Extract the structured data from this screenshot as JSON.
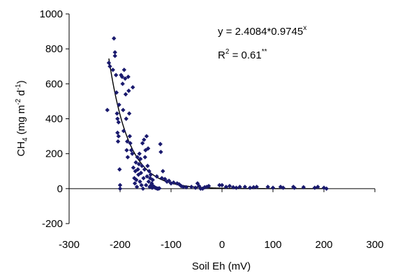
{
  "chart_data": {
    "type": "scatter",
    "title": "",
    "xlabel": "Soil Eh (mV)",
    "ylabel_main": "CH",
    "ylabel_sub": "4",
    "ylabel_units_pre": " (mg m",
    "ylabel_units_exp1": "-2",
    "ylabel_units_mid": " d",
    "ylabel_units_exp2": "-1",
    "ylabel_units_post": ")",
    "xlim": [
      -300,
      300
    ],
    "ylim": [
      -200,
      1000
    ],
    "xticks": [
      -300,
      -200,
      -100,
      0,
      100,
      200,
      300
    ],
    "yticks": [
      -200,
      0,
      200,
      400,
      600,
      800,
      1000
    ],
    "xtick_labels": [
      "-300",
      "-200",
      "-100",
      "0",
      "100",
      "200",
      "300"
    ],
    "ytick_labels": [
      "-200",
      "0",
      "200",
      "400",
      "600",
      "800",
      "1000"
    ],
    "grid": false,
    "marker_color": "#1a1a6e",
    "fit": {
      "type": "exponential",
      "a": 2.4084,
      "b": 0.9745,
      "x_range": [
        -222,
        205
      ]
    },
    "annotations": {
      "equation_main": "y = 2.4084*0.9745",
      "equation_sup": "x",
      "r2_pre": "R",
      "r2_sup": "2",
      "r2_main": " = 0.61",
      "r2_stars": "**"
    },
    "points": [
      [
        -225,
        450
      ],
      [
        -222,
        720
      ],
      [
        -220,
        700
      ],
      [
        -214,
        680
      ],
      [
        -212,
        860
      ],
      [
        -210,
        780
      ],
      [
        -210,
        760
      ],
      [
        -208,
        650
      ],
      [
        -207,
        550
      ],
      [
        -206,
        430
      ],
      [
        -205,
        400
      ],
      [
        -205,
        320
      ],
      [
        -204,
        270
      ],
      [
        -203,
        300
      ],
      [
        -203,
        380
      ],
      [
        -202,
        480
      ],
      [
        -201,
        110
      ],
      [
        -200,
        20
      ],
      [
        -200,
        0
      ],
      [
        -198,
        650
      ],
      [
        -196,
        640
      ],
      [
        -195,
        600
      ],
      [
        -194,
        450
      ],
      [
        -193,
        330
      ],
      [
        -192,
        680
      ],
      [
        -190,
        630
      ],
      [
        -189,
        540
      ],
      [
        -188,
        400
      ],
      [
        -187,
        220
      ],
      [
        -186,
        270
      ],
      [
        -185,
        180
      ],
      [
        -184,
        640
      ],
      [
        -183,
        560
      ],
      [
        -182,
        430
      ],
      [
        -181,
        300
      ],
      [
        -180,
        260
      ],
      [
        -178,
        220
      ],
      [
        -176,
        200
      ],
      [
        -175,
        580
      ],
      [
        -174,
        120
      ],
      [
        -172,
        60
      ],
      [
        -171,
        30
      ],
      [
        -170,
        100
      ],
      [
        -169,
        150
      ],
      [
        -168,
        50
      ],
      [
        -167,
        10
      ],
      [
        -166,
        180
      ],
      [
        -165,
        110
      ],
      [
        -164,
        80
      ],
      [
        -163,
        140
      ],
      [
        -162,
        200
      ],
      [
        -161,
        40
      ],
      [
        -160,
        170
      ],
      [
        -159,
        90
      ],
      [
        -158,
        20
      ],
      [
        -157,
        130
      ],
      [
        -156,
        260
      ],
      [
        -155,
        0
      ],
      [
        -154,
        60
      ],
      [
        -153,
        280
      ],
      [
        -152,
        110
      ],
      [
        -151,
        180
      ],
      [
        -150,
        220
      ],
      [
        -149,
        20
      ],
      [
        -148,
        300
      ],
      [
        -147,
        70
      ],
      [
        -146,
        130
      ],
      [
        -145,
        230
      ],
      [
        -144,
        40
      ],
      [
        -143,
        100
      ],
      [
        -142,
        10
      ],
      [
        -141,
        60
      ],
      [
        -140,
        80
      ],
      [
        -139,
        20
      ],
      [
        -138,
        30
      ],
      [
        -137,
        5
      ],
      [
        -136,
        50
      ],
      [
        -135,
        15
      ],
      [
        -133,
        10
      ],
      [
        -131,
        5
      ],
      [
        -129,
        3
      ],
      [
        -128,
        70
      ],
      [
        -127,
        0
      ],
      [
        -125,
        0
      ],
      [
        -123,
        2
      ],
      [
        -121,
        255
      ],
      [
        -120,
        210
      ],
      [
        -118,
        60
      ],
      [
        -116,
        100
      ],
      [
        -112,
        55
      ],
      [
        -108,
        40
      ],
      [
        -104,
        45
      ],
      [
        -100,
        30
      ],
      [
        -95,
        35
      ],
      [
        -88,
        30
      ],
      [
        -84,
        25
      ],
      [
        -80,
        15
      ],
      [
        -76,
        10
      ],
      [
        -70,
        8
      ],
      [
        -60,
        10
      ],
      [
        -52,
        5
      ],
      [
        -48,
        30
      ],
      [
        -45,
        15
      ],
      [
        -42,
        0
      ],
      [
        -38,
        0
      ],
      [
        -34,
        8
      ],
      [
        -30,
        10
      ],
      [
        -26,
        15
      ],
      [
        -5,
        20
      ],
      [
        0,
        20
      ],
      [
        8,
        10
      ],
      [
        15,
        15
      ],
      [
        22,
        8
      ],
      [
        28,
        5
      ],
      [
        35,
        10
      ],
      [
        45,
        10
      ],
      [
        55,
        5
      ],
      [
        62,
        8
      ],
      [
        68,
        10
      ],
      [
        90,
        10
      ],
      [
        100,
        5
      ],
      [
        115,
        10
      ],
      [
        120,
        5
      ],
      [
        140,
        10
      ],
      [
        142,
        5
      ],
      [
        160,
        8
      ],
      [
        182,
        5
      ],
      [
        188,
        10
      ],
      [
        200,
        5
      ],
      [
        205,
        0
      ]
    ]
  }
}
